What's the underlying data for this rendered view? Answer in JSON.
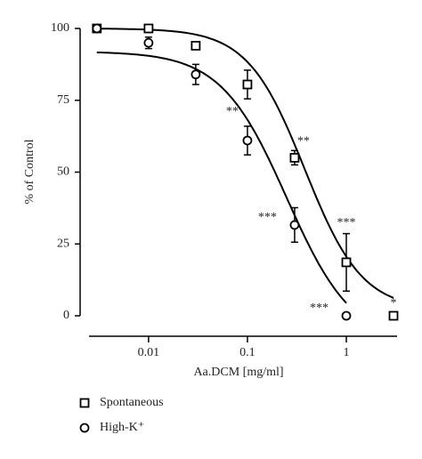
{
  "chart_data": {
    "type": "scatter",
    "xlabel": "Aa.DCM [mg/ml]",
    "ylabel": "% of Control",
    "xscale": "log",
    "xlim": [
      0.0025,
      3.26
    ],
    "xticks": [
      0.01,
      0.1,
      1
    ],
    "ylim": [
      0,
      100
    ],
    "yticks": [
      0,
      25,
      50,
      75,
      100
    ],
    "series": [
      {
        "name": "Spontaneous",
        "marker": "square",
        "color": "#000000",
        "x": [
          0.003,
          0.01,
          0.03,
          0.1,
          0.3,
          1,
          3
        ],
        "values": [
          100,
          100,
          94,
          80.5,
          55,
          18.6,
          0
        ],
        "errors": [
          0.5,
          0.5,
          1,
          5,
          2.5,
          10,
          0.5
        ],
        "annotations": [
          null,
          null,
          null,
          null,
          "**",
          "***",
          "*"
        ],
        "fit": {
          "top": 100,
          "bottom": 2,
          "ec50": 0.38,
          "hill": 1.5
        }
      },
      {
        "name": "High-K⁺",
        "marker": "circle",
        "color": "#000000",
        "x": [
          0.003,
          0.01,
          0.03,
          0.1,
          0.3,
          1
        ],
        "values": [
          100,
          95,
          84,
          61,
          31.6,
          0
        ],
        "errors": [
          0.5,
          2,
          3.5,
          5,
          6,
          0.5
        ],
        "annotations": [
          null,
          null,
          null,
          "**",
          "***",
          "***"
        ],
        "fit": {
          "top": 92,
          "bottom": -10,
          "ec50": 0.25,
          "hill": 1.3
        }
      }
    ]
  }
}
